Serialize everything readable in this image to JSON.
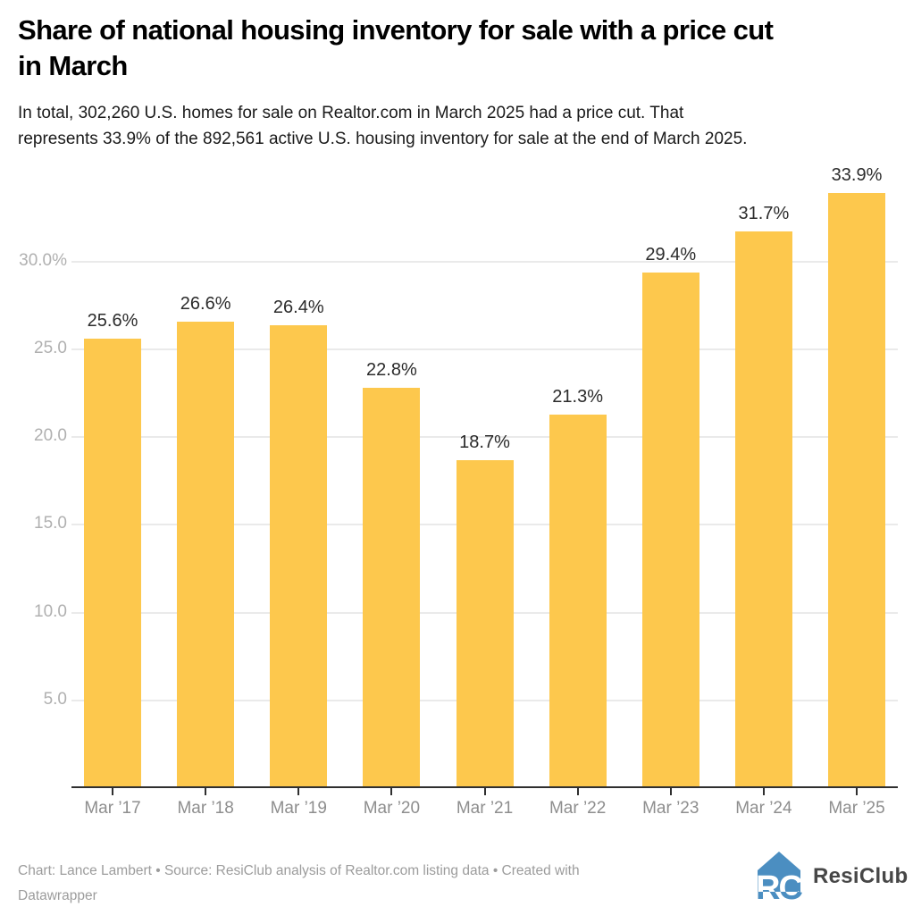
{
  "header": {
    "title_lines": [
      "Share of national housing inventory for sale with a price cut",
      "in March"
    ],
    "subtitle_lines": [
      "In total, 302,260 U.S. homes for sale on Realtor.com in March 2025 had a price cut. That",
      "represents 33.9% of the 892,561 active U.S. housing inventory for sale at the end of March 2025."
    ]
  },
  "chart_data": {
    "type": "bar",
    "title": "Share of national housing inventory for sale with a price cut in March",
    "categories": [
      "Mar ’17",
      "Mar ’18",
      "Mar ’19",
      "Mar ’20",
      "Mar ’21",
      "Mar ’22",
      "Mar ’23",
      "Mar ’24",
      "Mar ’25"
    ],
    "values": [
      25.6,
      26.6,
      26.4,
      22.8,
      18.7,
      21.3,
      29.4,
      31.7,
      33.9
    ],
    "value_labels": [
      "25.6%",
      "26.6%",
      "26.4%",
      "22.8%",
      "18.7%",
      "21.3%",
      "29.4%",
      "31.7%",
      "33.9%"
    ],
    "y_ticks": [
      {
        "value": 5.0,
        "label": "5.0"
      },
      {
        "value": 10.0,
        "label": "10.0"
      },
      {
        "value": 15.0,
        "label": "15.0"
      },
      {
        "value": 20.0,
        "label": "20.0"
      },
      {
        "value": 25.0,
        "label": "25.0"
      },
      {
        "value": 30.0,
        "label": "30.0%"
      }
    ],
    "ylim": [
      0,
      35
    ],
    "xlabel": "",
    "ylabel": "",
    "grid": true,
    "legend": false,
    "bar_color": "#FDC84D",
    "value_label_color": "#2b2b2b"
  },
  "footer": {
    "attribution_lines": [
      "Chart: Lance Lambert • Source: ResiClub analysis of Realtor.com listing data • Created with",
      "Datawrapper"
    ],
    "logo_monogram": "RC",
    "logo_text": "ResiClub",
    "logo_color": "#4B8EC1"
  }
}
